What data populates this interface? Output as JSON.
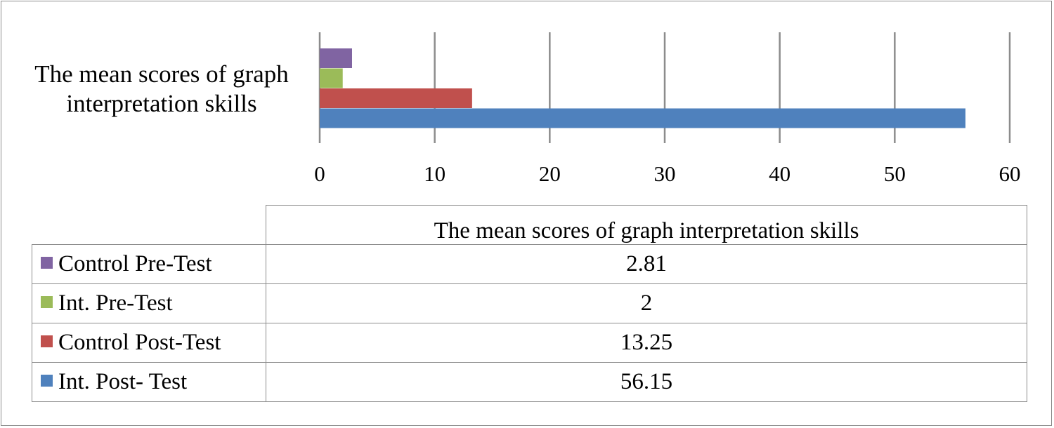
{
  "chart_data": {
    "type": "bar",
    "orientation": "horizontal",
    "categories": [
      "The mean scores of graph interpretation skills"
    ],
    "category_label": "The mean scores of graph interpretation skills",
    "series": [
      {
        "name": "Control Pre-Test",
        "values": [
          2.81
        ],
        "value_label": "2.81",
        "color": "#8064a2"
      },
      {
        "name": "Int. Pre-Test",
        "values": [
          2
        ],
        "value_label": "2",
        "color": "#9bbb59"
      },
      {
        "name": "Control Post-Test",
        "values": [
          13.25
        ],
        "value_label": "13.25",
        "color": "#c0504d"
      },
      {
        "name": "Int. Post- Test",
        "values": [
          56.15
        ],
        "value_label": "56.15",
        "color": "#4f81bd"
      }
    ],
    "xlim": [
      0,
      60
    ],
    "xticks": [
      "0",
      "10",
      "20",
      "30",
      "40",
      "50",
      "60"
    ],
    "grid": true,
    "legend": "data table below chart",
    "table_header": "The mean scores of graph interpretation skills"
  }
}
